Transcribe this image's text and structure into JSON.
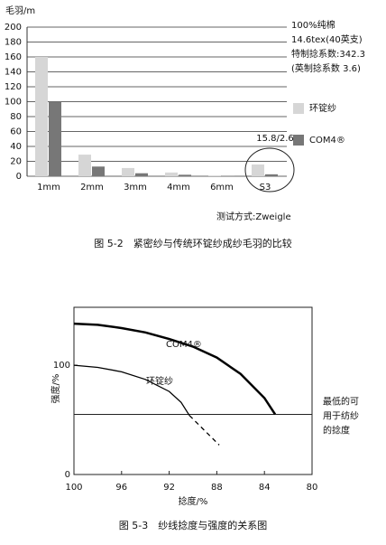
{
  "chart_data": [
    {
      "type": "bar",
      "y_label": "毛羽/m",
      "categories": [
        "1mm",
        "2mm",
        "3mm",
        "4mm",
        "6mm",
        "S3"
      ],
      "series": [
        {
          "name": "环锭纱",
          "color": "#d6d6d6",
          "values": [
            160,
            29,
            11,
            5,
            1,
            15.8
          ]
        },
        {
          "name": "COM4®",
          "color": "#777777",
          "values": [
            100,
            13,
            4,
            2,
            0.5,
            2.6
          ]
        }
      ],
      "ylim": [
        0,
        200
      ],
      "yticks": [
        0,
        20,
        40,
        60,
        80,
        100,
        120,
        140,
        160,
        180,
        200
      ],
      "grid": true,
      "annotations": [
        "100%纯棉",
        "14.6tex(40英支)",
        "特制捻系数:342.3",
        "(英制捻系数 3.6)"
      ],
      "value_note": "15.8/2.6",
      "note": "测试方式:Zweigle",
      "caption": "图 5-2　紧密纱与传统环锭纱成纱毛羽的比较"
    },
    {
      "type": "line",
      "x_label": "捻度/%",
      "y_label": "强度/%",
      "series": [
        {
          "name": "COM4®",
          "color": "#000000",
          "x": [
            100,
            98,
            96,
            94,
            92,
            90,
            88,
            86,
            84,
            83.1
          ],
          "values": [
            138,
            137,
            134,
            130,
            124,
            117,
            107,
            92,
            70,
            55
          ]
        },
        {
          "name": "环锭纱",
          "color": "#000000",
          "x": [
            100,
            98,
            96,
            94,
            92,
            91,
            90.3
          ],
          "values": [
            100,
            98,
            94,
            87,
            76,
            66,
            54
          ]
        },
        {
          "color": "#000000",
          "dashed": true,
          "x": [
            90.3,
            87.8
          ],
          "values": [
            54,
            27
          ]
        }
      ],
      "xlim": [
        100,
        80
      ],
      "xticks": [
        100,
        96,
        92,
        88,
        84,
        80
      ],
      "ylim": [
        0,
        153
      ],
      "yticks": [
        0,
        100
      ],
      "threshold": 55,
      "threshold_label": [
        "最低的可",
        "用于纺纱",
        "的捻度"
      ],
      "caption": "图 5-3　纱线捻度与强度的关系图"
    }
  ]
}
